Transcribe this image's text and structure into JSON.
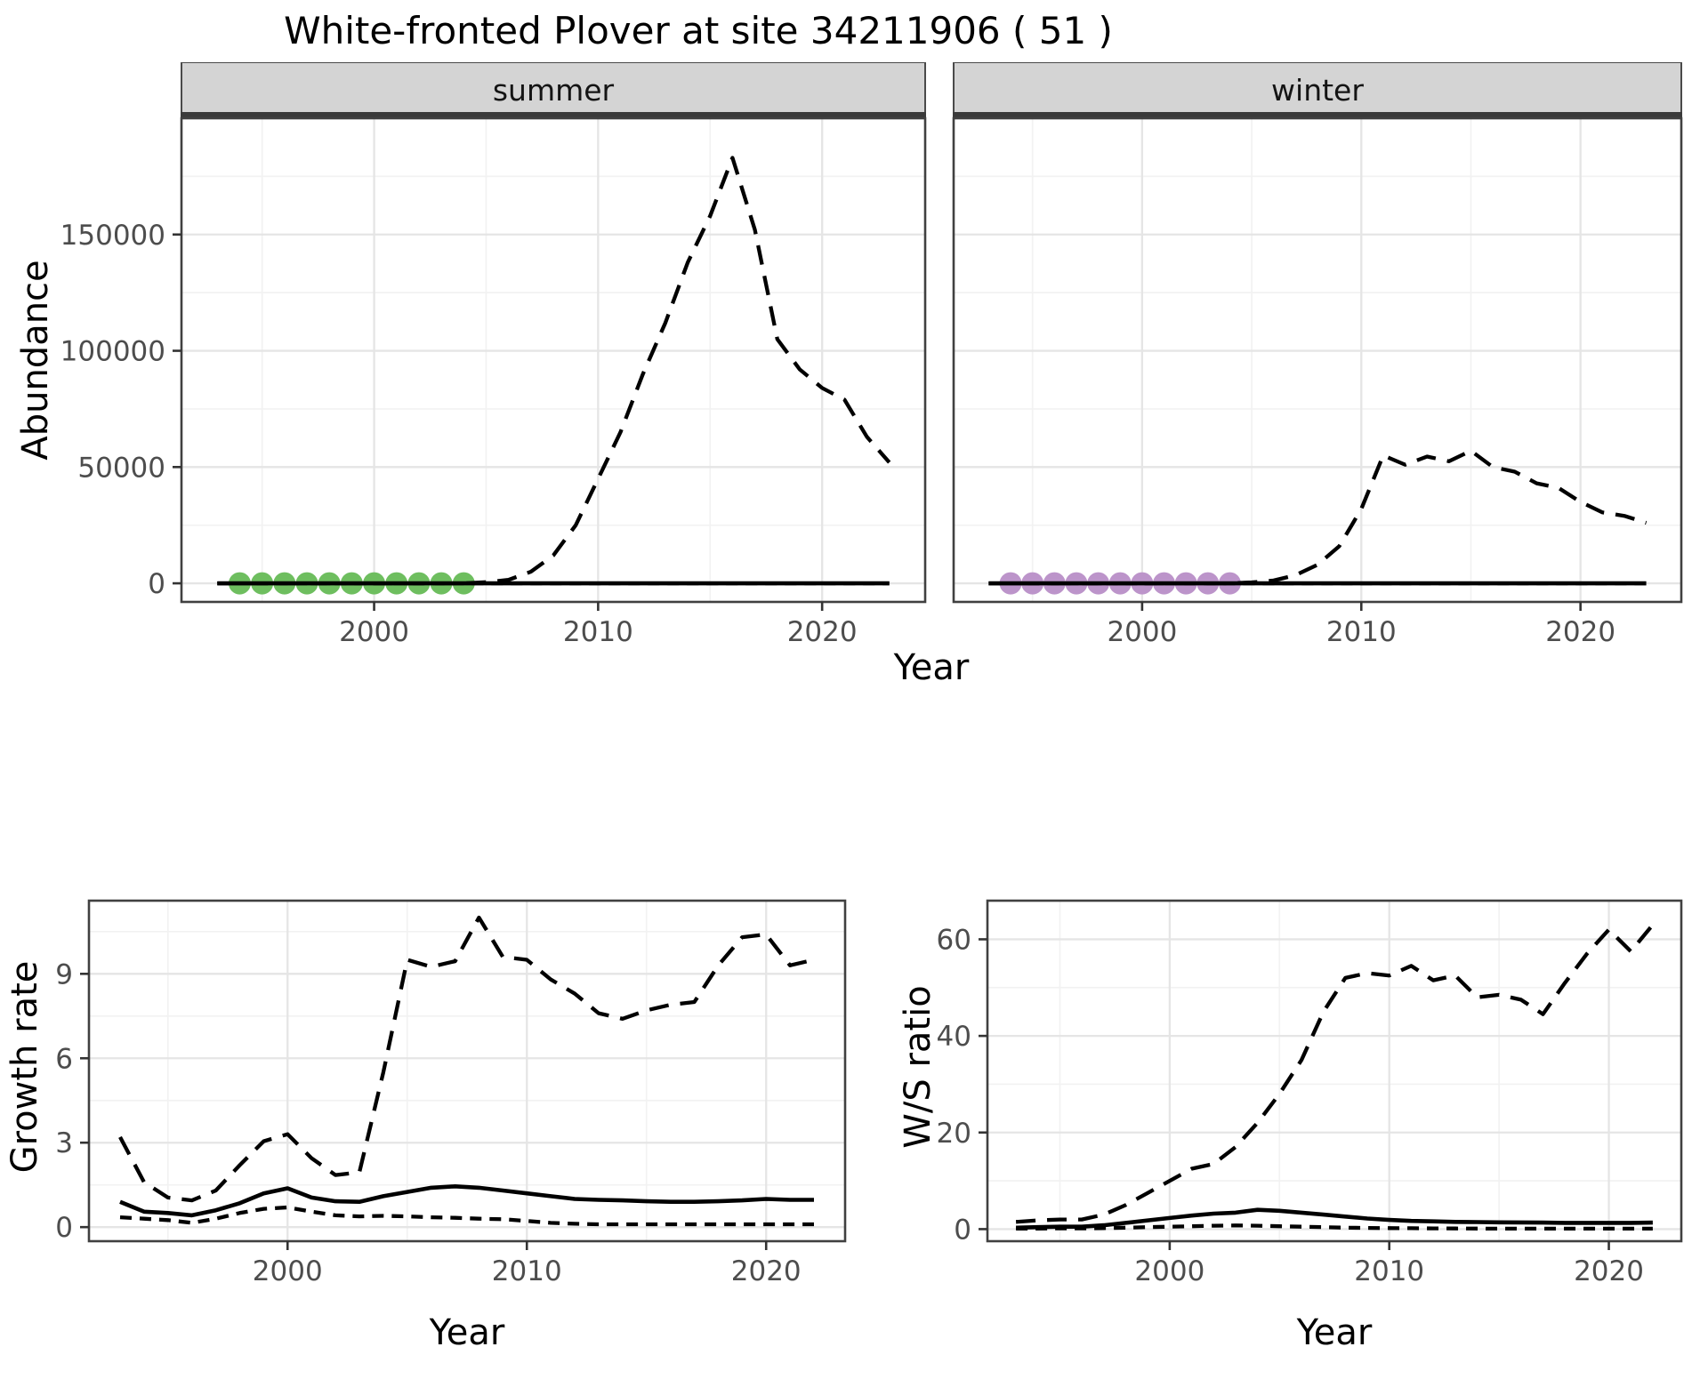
{
  "title": "White-fronted Plover at site 34211906 ( 51 )",
  "colors": {
    "summer_dots": "#6ebe5f",
    "winter_dots": "#bc94ca",
    "line": "#000000",
    "strip_background": "#d4d4d4",
    "strip_border": "#3a3a3a",
    "panel_border": "#404040",
    "gridline_major": "#e5e5e5",
    "gridline_minor": "#f2f2f2",
    "tick_label": "#4d4d4d"
  },
  "chart_data": {
    "abundance": {
      "type": "line",
      "xlabel": "Year",
      "ylabel": "Abundance",
      "xticks": [
        2000,
        2010,
        2020
      ],
      "xtick_labels": [
        "2000",
        "2010",
        "2020"
      ],
      "yticks": [
        0,
        50000,
        100000,
        150000
      ],
      "ytick_labels": [
        "0",
        "50000",
        "100000",
        "150000"
      ],
      "xminor": [
        1995,
        2005,
        2015
      ],
      "yminor": [
        25000,
        75000,
        125000,
        175000
      ],
      "xlim": [
        1991.4,
        2024.6
      ],
      "ylim": [
        -8000,
        200000
      ],
      "grid": true,
      "years": [
        1993,
        1994,
        1995,
        1996,
        1997,
        1998,
        1999,
        2000,
        2001,
        2002,
        2003,
        2004,
        2005,
        2006,
        2007,
        2008,
        2009,
        2010,
        2011,
        2012,
        2013,
        2014,
        2015,
        2016,
        2017,
        2018,
        2019,
        2020,
        2021,
        2022,
        2023
      ],
      "facets": [
        {
          "label": "summer",
          "dot_color_key": "summer_dots",
          "observed_years": [
            1994,
            1995,
            1996,
            1997,
            1998,
            1999,
            2000,
            2001,
            2002,
            2003,
            2004
          ],
          "observed_value": 0,
          "series": {
            "upper_ci": [
              0,
              0,
              0,
              0,
              0,
              0,
              0,
              0,
              0,
              0,
              0,
              0,
              500,
              1500,
              5000,
              12000,
              25000,
              45000,
              65000,
              90000,
              112000,
              138000,
              158000,
              183000,
              152000,
              105000,
              92000,
              84000,
              79000,
              63000,
              52000
            ],
            "median": [
              0,
              0,
              0,
              0,
              0,
              0,
              0,
              0,
              0,
              0,
              0,
              0,
              0,
              0,
              0,
              0,
              0,
              0,
              0,
              0,
              0,
              0,
              0,
              0,
              0,
              0,
              0,
              0,
              0,
              0,
              0
            ],
            "lower_ci": [
              0,
              0,
              0,
              0,
              0,
              0,
              0,
              0,
              0,
              0,
              0,
              0,
              0,
              0,
              0,
              0,
              0,
              0,
              0,
              0,
              0,
              0,
              0,
              0,
              0,
              0,
              0,
              0,
              0,
              0,
              0
            ]
          }
        },
        {
          "label": "winter",
          "dot_color_key": "winter_dots",
          "observed_years": [
            1994,
            1995,
            1996,
            1997,
            1998,
            1999,
            2000,
            2001,
            2002,
            2003,
            2004
          ],
          "observed_value": 0,
          "series": {
            "upper_ci": [
              0,
              0,
              0,
              0,
              0,
              0,
              0,
              0,
              0,
              0,
              0,
              0,
              400,
              1200,
              3500,
              8000,
              16000,
              32000,
              55000,
              51000,
              54500,
              52500,
              57000,
              50000,
              48000,
              43000,
              41000,
              35000,
              30500,
              29000,
              26000
            ],
            "median": [
              0,
              0,
              0,
              0,
              0,
              0,
              0,
              0,
              0,
              0,
              0,
              0,
              0,
              0,
              0,
              0,
              0,
              0,
              0,
              0,
              0,
              0,
              0,
              0,
              0,
              0,
              0,
              0,
              0,
              0,
              0
            ],
            "lower_ci": [
              0,
              0,
              0,
              0,
              0,
              0,
              0,
              0,
              0,
              0,
              0,
              0,
              0,
              0,
              0,
              0,
              0,
              0,
              0,
              0,
              0,
              0,
              0,
              0,
              0,
              0,
              0,
              0,
              0,
              0,
              0
            ]
          }
        }
      ]
    },
    "growth_rate": {
      "type": "line",
      "xlabel": "Year",
      "ylabel": "Growth rate",
      "xticks": [
        2000,
        2010,
        2020
      ],
      "xtick_labels": [
        "2000",
        "2010",
        "2020"
      ],
      "yticks": [
        0,
        3,
        6,
        9
      ],
      "ytick_labels": [
        "0",
        "3",
        "6",
        "9"
      ],
      "xminor": [
        1995,
        2005,
        2015
      ],
      "yminor": [
        1.5,
        4.5,
        7.5,
        10.5
      ],
      "xlim": [
        1991.7,
        2023.3
      ],
      "ylim": [
        -0.5,
        11.6
      ],
      "grid": true,
      "years": [
        1993,
        1994,
        1995,
        1996,
        1997,
        1998,
        1999,
        2000,
        2001,
        2002,
        2003,
        2004,
        2005,
        2006,
        2007,
        2008,
        2009,
        2010,
        2011,
        2012,
        2013,
        2014,
        2015,
        2016,
        2017,
        2018,
        2019,
        2020,
        2021,
        2022
      ],
      "series": {
        "upper_ci": [
          3.2,
          1.6,
          1.05,
          0.95,
          1.3,
          2.2,
          3.05,
          3.3,
          2.45,
          1.85,
          1.95,
          5.5,
          9.5,
          9.25,
          9.45,
          11.0,
          9.6,
          9.5,
          8.8,
          8.3,
          7.6,
          7.4,
          7.7,
          7.9,
          8.0,
          9.3,
          10.3,
          10.4,
          9.3,
          9.5
        ],
        "median": [
          0.9,
          0.55,
          0.5,
          0.42,
          0.6,
          0.85,
          1.2,
          1.38,
          1.05,
          0.92,
          0.9,
          1.1,
          1.25,
          1.4,
          1.45,
          1.4,
          1.3,
          1.2,
          1.1,
          1.0,
          0.97,
          0.95,
          0.92,
          0.9,
          0.9,
          0.92,
          0.95,
          1.0,
          0.97,
          0.97
        ],
        "lower_ci": [
          0.35,
          0.3,
          0.25,
          0.15,
          0.3,
          0.5,
          0.65,
          0.7,
          0.55,
          0.42,
          0.38,
          0.4,
          0.38,
          0.35,
          0.33,
          0.3,
          0.28,
          0.22,
          0.15,
          0.12,
          0.1,
          0.1,
          0.1,
          0.1,
          0.1,
          0.1,
          0.1,
          0.1,
          0.1,
          0.1
        ]
      }
    },
    "ws_ratio": {
      "type": "line",
      "xlabel": "Year",
      "ylabel": "W/S ratio",
      "xticks": [
        2000,
        2010,
        2020
      ],
      "xtick_labels": [
        "2000",
        "2010",
        "2020"
      ],
      "yticks": [
        0,
        20,
        40,
        60
      ],
      "ytick_labels": [
        "0",
        "20",
        "40",
        "60"
      ],
      "xminor": [
        1995,
        2005,
        2015
      ],
      "yminor": [
        10,
        30,
        50
      ],
      "xlim": [
        1991.7,
        2023.3
      ],
      "ylim": [
        -2.5,
        68
      ],
      "grid": true,
      "years": [
        1993,
        1994,
        1995,
        1996,
        1997,
        1998,
        1999,
        2000,
        2001,
        2002,
        2003,
        2004,
        2005,
        2006,
        2007,
        2008,
        2009,
        2010,
        2011,
        2012,
        2013,
        2014,
        2015,
        2016,
        2017,
        2018,
        2019,
        2020,
        2021,
        2022
      ],
      "series": {
        "upper_ci": [
          1.5,
          1.8,
          2.0,
          2.0,
          3.0,
          5.0,
          7.5,
          10,
          12.5,
          13.5,
          17,
          22,
          28,
          35,
          45,
          52,
          53,
          52.5,
          54.5,
          51.5,
          52.5,
          48,
          48.5,
          47.5,
          44.5,
          51,
          57,
          62,
          57.5,
          63
        ],
        "median": [
          0.3,
          0.4,
          0.5,
          0.5,
          0.8,
          1.3,
          1.8,
          2.3,
          2.8,
          3.2,
          3.4,
          4.0,
          3.8,
          3.4,
          3.0,
          2.6,
          2.2,
          1.9,
          1.7,
          1.6,
          1.5,
          1.45,
          1.4,
          1.38,
          1.35,
          1.3,
          1.3,
          1.3,
          1.3,
          1.35
        ],
        "lower_ci": [
          0.1,
          0.12,
          0.15,
          0.15,
          0.2,
          0.3,
          0.4,
          0.5,
          0.6,
          0.7,
          0.75,
          0.7,
          0.6,
          0.5,
          0.4,
          0.3,
          0.25,
          0.2,
          0.18,
          0.15,
          0.13,
          0.12,
          0.1,
          0.1,
          0.1,
          0.1,
          0.1,
          0.1,
          0.1,
          0.1
        ]
      }
    }
  }
}
